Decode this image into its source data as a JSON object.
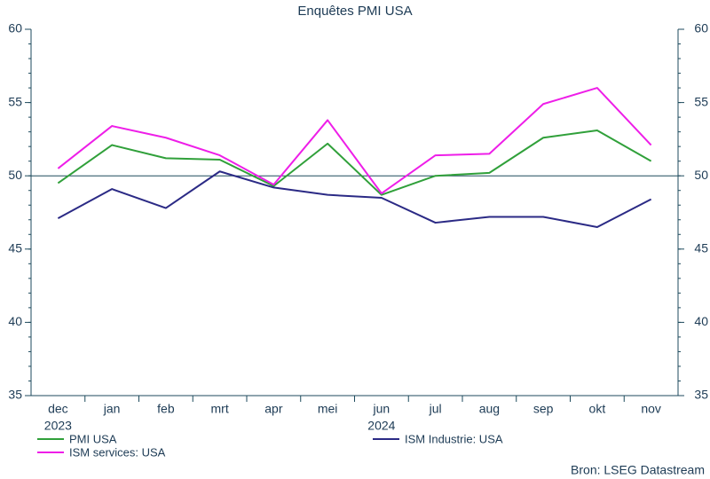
{
  "chart_data": {
    "type": "line",
    "title": "Enquêtes PMI USA",
    "categories": [
      "dec",
      "jan",
      "feb",
      "mrt",
      "apr",
      "mei",
      "jun",
      "jul",
      "aug",
      "sep",
      "okt",
      "nov"
    ],
    "x_sublabels": [
      {
        "index": 0,
        "label": "2023"
      },
      {
        "index": 6,
        "label": "2024"
      }
    ],
    "series": [
      {
        "name": "PMI USA",
        "color": "#30a03a",
        "values": [
          49.5,
          52.1,
          51.2,
          51.1,
          49.3,
          52.2,
          48.7,
          50.0,
          50.2,
          52.6,
          53.1,
          51.0
        ]
      },
      {
        "name": "ISM Industrie: USA",
        "color": "#2b2a85",
        "values": [
          47.1,
          49.1,
          47.8,
          50.3,
          49.2,
          48.7,
          48.5,
          46.8,
          47.2,
          47.2,
          46.5,
          48.4
        ]
      },
      {
        "name": "ISM services: USA",
        "color": "#ee1ee8",
        "values": [
          50.5,
          53.4,
          52.6,
          51.4,
          49.4,
          53.8,
          48.8,
          51.4,
          51.5,
          54.9,
          56.0,
          52.1
        ]
      }
    ],
    "ylim": [
      35,
      60
    ],
    "yticks": [
      35,
      40,
      45,
      50,
      55,
      60
    ],
    "y2lim": [
      35,
      60
    ],
    "y2ticks": [
      35,
      40,
      45,
      50,
      55,
      60
    ],
    "yminor_step": 1,
    "hline": 50,
    "source": "Bron: LSEG Datastream"
  }
}
